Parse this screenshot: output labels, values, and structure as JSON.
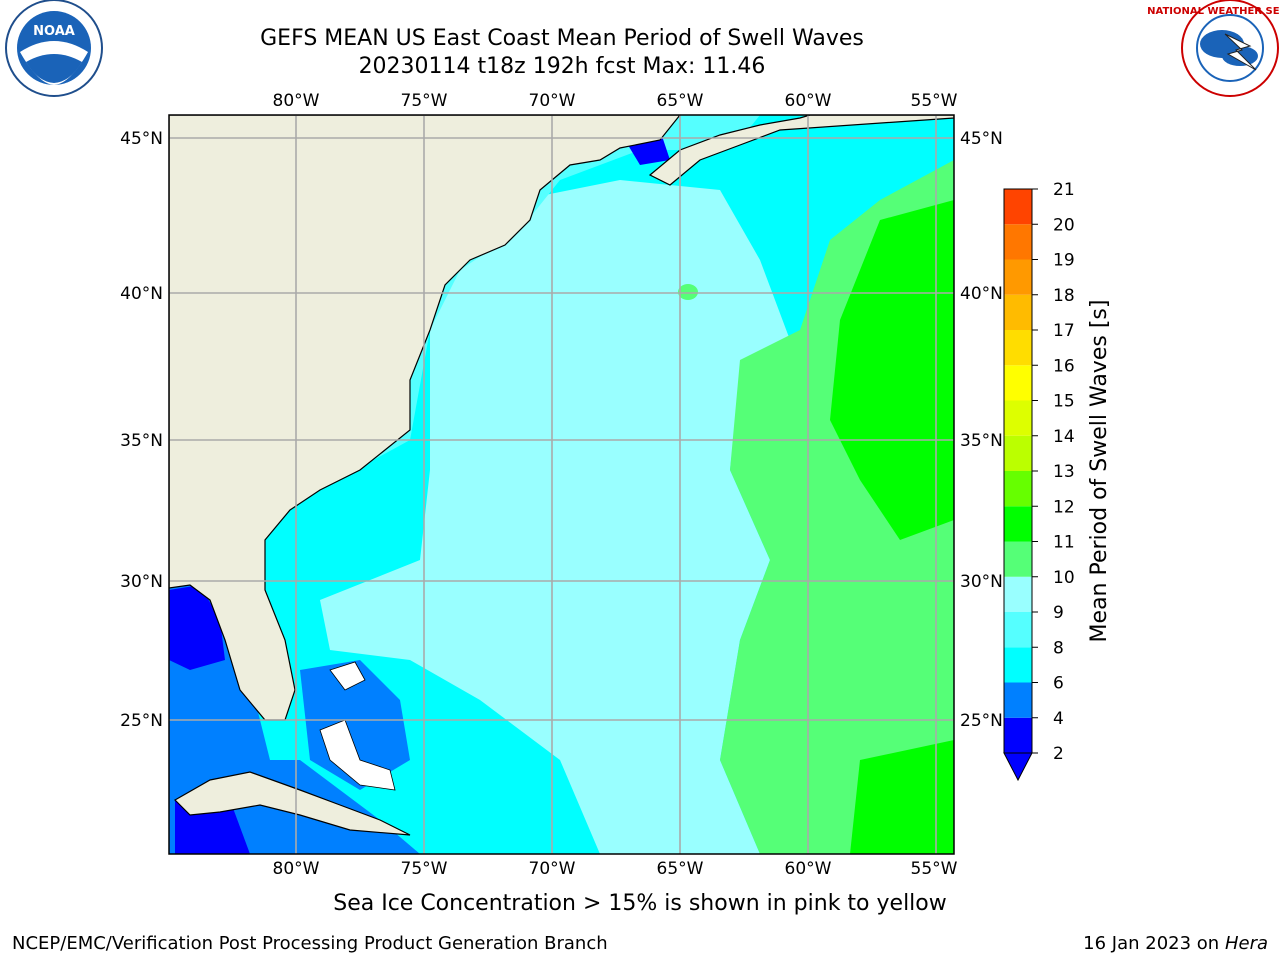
{
  "title": {
    "line1": "GEFS MEAN US East Coast Mean Period of Swell Waves",
    "line2": "20230114 t18z 192h fcst   Max: 11.46"
  },
  "map": {
    "lon_ticks": [
      "80°W",
      "75°W",
      "70°W",
      "65°W",
      "60°W",
      "55°W"
    ],
    "lat_ticks": [
      "45°N",
      "40°N",
      "35°N",
      "30°N",
      "25°N"
    ],
    "colors": {
      "land": "#eeeedd",
      "ocean_base": "#00ffff",
      "grid": "#aaaaaa"
    }
  },
  "colorbar": {
    "label": "Mean Period of Swell Waves [s]",
    "ticks": [
      "2",
      "4",
      "6",
      "8",
      "9",
      "10",
      "11",
      "12",
      "13",
      "14",
      "15",
      "16",
      "17",
      "18",
      "19",
      "20",
      "21"
    ],
    "colors": [
      "#0000ff",
      "#0080ff",
      "#00ffff",
      "#55ffff",
      "#99ffff",
      "#55ff77",
      "#00ff00",
      "#66ff00",
      "#bbff00",
      "#ddff00",
      "#ffff00",
      "#ffdd00",
      "#ffbb00",
      "#ff9900",
      "#ff7700",
      "#ff4400",
      "#ff0000"
    ],
    "extend": "min"
  },
  "note": "Sea Ice Concentration > 15% is shown in pink to yellow",
  "footer": {
    "left": "NCEP/EMC/Verification Post Processing Product Generation Branch",
    "date": "16 Jan 2023 on ",
    "machine": "Hera"
  },
  "logos": {
    "noaa_text": "NOAA",
    "nws_ring": "NATIONAL WEATHER SERVICE"
  }
}
